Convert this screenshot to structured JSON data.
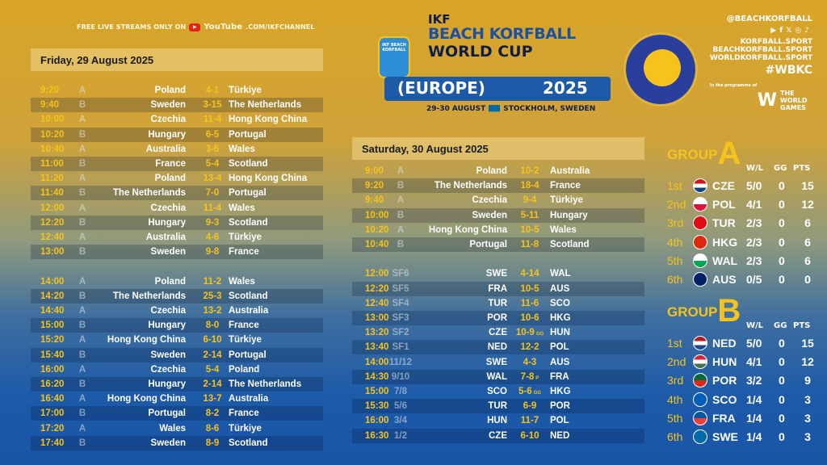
{
  "stream": {
    "text": "FREE LIVE STREAMS ONLY ON",
    "yt_icon": "youtube-icon",
    "brand": "YouTube",
    "url": ".COM/IKFCHANNEL"
  },
  "logo": {
    "line1": "IKF",
    "line2": "BEACH KORFBALL",
    "line3": "WORLD CUP",
    "line4": "(EUROPE)",
    "year": "2025",
    "dates": "29-30 AUGUST",
    "place": "STOCKHOLM, SWEDEN",
    "mini": "IKF BEACH KORFBALL"
  },
  "emblem": {
    "text": "Beach Korfball World Cup Stockholm 2025"
  },
  "social": {
    "handle": "@BEACHKORFBALL",
    "icons": [
      "youtube-icon",
      "facebook-icon",
      "x-icon",
      "instagram-icon",
      "tiktok-icon"
    ],
    "site1": "KORFBALL.SPORT",
    "site2": "BEACHKORFBALL.SPORT",
    "site3": "WORLDKORFBALL.SPORT",
    "hashtag": "#WBKC",
    "programme": "In the programme of",
    "twg": "THE WORLD GAMES"
  },
  "friday": {
    "title": "Friday, 29 August 2025",
    "matches": [
      [
        "9:20",
        "A",
        "Poland",
        "4-1",
        "Türkiye",
        ""
      ],
      [
        "9:40",
        "B",
        "Sweden",
        "3-15",
        "The Netherlands",
        ""
      ],
      [
        "10:00",
        "A",
        "Czechia",
        "11-4",
        "Hong Kong China",
        ""
      ],
      [
        "10:20",
        "B",
        "Hungary",
        "6-5",
        "Portugal",
        ""
      ],
      [
        "10:40",
        "A",
        "Australia",
        "3-5",
        "Wales",
        ""
      ],
      [
        "11:00",
        "B",
        "France",
        "5-4",
        "Scotland",
        ""
      ],
      [
        "11:20",
        "A",
        "Poland",
        "13-4",
        "Hong Kong China",
        ""
      ],
      [
        "11:40",
        "B",
        "The Netherlands",
        "7-0",
        "Portugal",
        ""
      ],
      [
        "12:00",
        "A",
        "Czechia",
        "11-4",
        "Wales",
        ""
      ],
      [
        "12:20",
        "B",
        "Hungary",
        "9-3",
        "Scotland",
        ""
      ],
      [
        "12:40",
        "A",
        "Australia",
        "4-6",
        "Türkiye",
        ""
      ],
      [
        "13:00",
        "B",
        "Sweden",
        "9-8",
        "France",
        ""
      ],
      [
        "14:00",
        "A",
        "Poland",
        "11-2",
        "Wales",
        ""
      ],
      [
        "14:20",
        "B",
        "The Netherlands",
        "25-3",
        "Scotland",
        ""
      ],
      [
        "14:40",
        "A",
        "Czechia",
        "13-2",
        "Australia",
        ""
      ],
      [
        "15:00",
        "B",
        "Hungary",
        "8-0",
        "France",
        ""
      ],
      [
        "15:20",
        "A",
        "Hong Kong China",
        "6-10",
        "Türkiye",
        ""
      ],
      [
        "15:40",
        "B",
        "Sweden",
        "2-14",
        "Portugal",
        ""
      ],
      [
        "16:00",
        "A",
        "Czechia",
        "5-4",
        "Poland",
        ""
      ],
      [
        "16:20",
        "B",
        "Hungary",
        "2-14",
        "The Netherlands",
        ""
      ],
      [
        "16:40",
        "A",
        "Hong Kong China",
        "13-7",
        "Australia",
        ""
      ],
      [
        "17:00",
        "B",
        "Portugal",
        "8-2",
        "France",
        ""
      ],
      [
        "17:20",
        "A",
        "Wales",
        "8-6",
        "Türkiye",
        ""
      ],
      [
        "17:40",
        "B",
        "Sweden",
        "8-9",
        "Scotland",
        ""
      ]
    ]
  },
  "saturday": {
    "title": "Saturday, 30 August 2025",
    "matches": [
      [
        "9:00",
        "A",
        "Poland",
        "10-2",
        "Australia",
        ""
      ],
      [
        "9:20",
        "B",
        "The Netherlands",
        "18-4",
        "France",
        ""
      ],
      [
        "9:40",
        "A",
        "Czechia",
        "9-4",
        "Türkiye",
        ""
      ],
      [
        "10:00",
        "B",
        "Sweden",
        "5-11",
        "Hungary",
        ""
      ],
      [
        "10:20",
        "A",
        "Hong Kong China",
        "10-5",
        "Wales",
        ""
      ],
      [
        "10:40",
        "B",
        "Portugal",
        "11-8",
        "Scotland",
        ""
      ],
      [
        "12:00",
        "SF6",
        "SWE",
        "4-14",
        "WAL",
        ""
      ],
      [
        "12:20",
        "SF5",
        "FRA",
        "10-5",
        "AUS",
        ""
      ],
      [
        "12:40",
        "SF4",
        "TUR",
        "11-6",
        "SCO",
        ""
      ],
      [
        "13:00",
        "SF3",
        "POR",
        "10-6",
        "HKG",
        ""
      ],
      [
        "13:20",
        "SF2",
        "CZE",
        "10-9",
        "HUN",
        "GG"
      ],
      [
        "13:40",
        "SF1",
        "NED",
        "12-2",
        "POL",
        ""
      ],
      [
        "14:00",
        "11/12",
        "SWE",
        "4-3",
        "AUS",
        ""
      ],
      [
        "14:30",
        "9/10",
        "WAL",
        "7-8",
        "FRA",
        "P"
      ],
      [
        "15:00",
        "7/8",
        "SCO",
        "5-6",
        "HKG",
        "GG"
      ],
      [
        "15:30",
        "5/6",
        "TUR",
        "6-9",
        "POR",
        ""
      ],
      [
        "16:00",
        "3/4",
        "HUN",
        "11-7",
        "POL",
        ""
      ],
      [
        "16:30",
        "1/2",
        "CZE",
        "6-10",
        "NED",
        ""
      ]
    ]
  },
  "standings": [
    {
      "label": "GROUP",
      "letter": "A",
      "cols": [
        "W/L",
        "GG",
        "PTS"
      ],
      "rows": [
        [
          "1st",
          "CZE",
          "5/0",
          "0",
          "15",
          "#d7141a",
          "#fff",
          "#11457e"
        ],
        [
          "2nd",
          "POL",
          "4/1",
          "0",
          "12",
          "#fff",
          "#dc143c",
          ""
        ],
        [
          "3rd",
          "TUR",
          "2/3",
          "0",
          "6",
          "#e30a17",
          "#e30a17",
          ""
        ],
        [
          "4th",
          "HKG",
          "2/3",
          "0",
          "6",
          "#de2910",
          "#de2910",
          ""
        ],
        [
          "5th",
          "WAL",
          "2/3",
          "0",
          "6",
          "#fff",
          "#00a650",
          ""
        ],
        [
          "6th",
          "AUS",
          "0/5",
          "0",
          "0",
          "#012169",
          "#012169",
          ""
        ]
      ]
    },
    {
      "label": "GROUP",
      "letter": "B",
      "cols": [
        "W/L",
        "GG",
        "PTS"
      ],
      "rows": [
        [
          "1st",
          "NED",
          "5/0",
          "0",
          "15",
          "#ae1c28",
          "#fff",
          "#21468b"
        ],
        [
          "2nd",
          "HUN",
          "4/1",
          "0",
          "12",
          "#ce2939",
          "#fff",
          "#477050"
        ],
        [
          "3rd",
          "POR",
          "3/2",
          "0",
          "9",
          "#046a38",
          "#da291c",
          ""
        ],
        [
          "4th",
          "SCO",
          "1/4",
          "0",
          "3",
          "#005eb8",
          "#005eb8",
          ""
        ],
        [
          "5th",
          "FRA",
          "1/4",
          "0",
          "3",
          "#0055a4",
          "#ef4135",
          ""
        ],
        [
          "6th",
          "SWE",
          "1/4",
          "0",
          "3",
          "#006aa7",
          "#006aa7",
          ""
        ]
      ]
    }
  ]
}
